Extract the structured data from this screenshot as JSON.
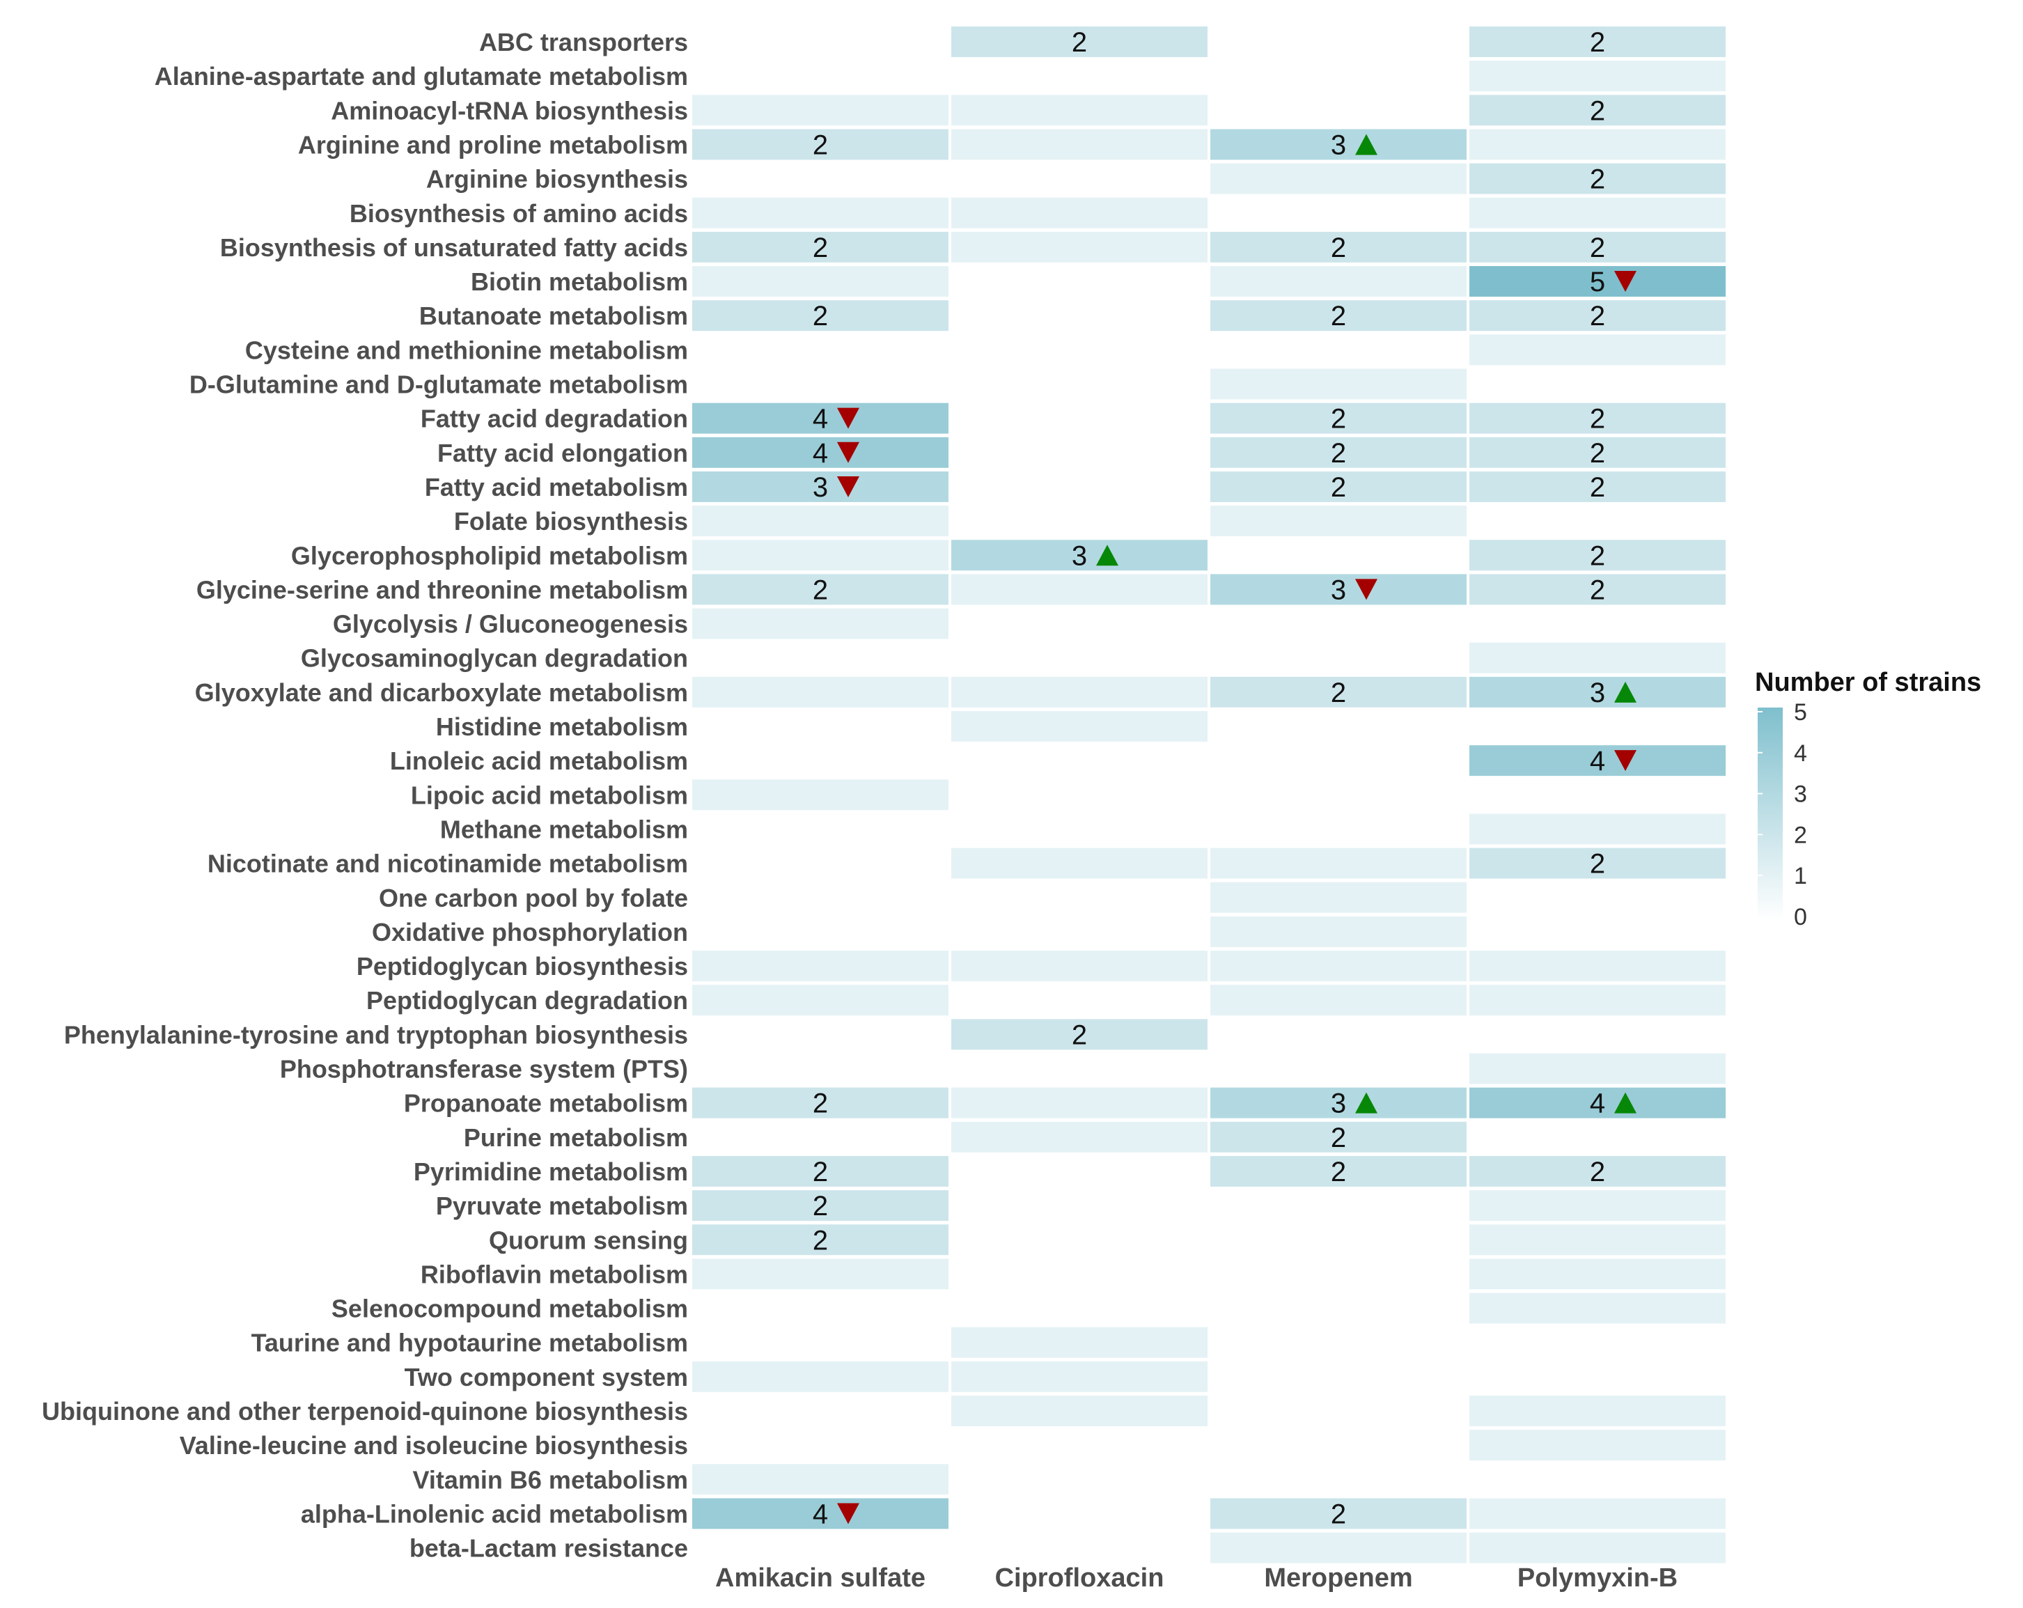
{
  "chart_data": {
    "type": "heatmap",
    "title": "",
    "xlabel": "",
    "ylabel": "",
    "columns": [
      "Amikacin sulfate",
      "Ciprofloxacin",
      "Meropenem",
      "Polymyxin-B"
    ],
    "rows": [
      "ABC transporters",
      "Alanine-aspartate and glutamate metabolism",
      "Aminoacyl-tRNA biosynthesis",
      "Arginine and proline metabolism",
      "Arginine biosynthesis",
      "Biosynthesis of amino acids",
      "Biosynthesis of unsaturated fatty acids",
      "Biotin metabolism",
      "Butanoate metabolism",
      "Cysteine and methionine metabolism",
      "D-Glutamine and D-glutamate metabolism",
      "Fatty acid degradation",
      "Fatty acid elongation",
      "Fatty acid metabolism",
      "Folate biosynthesis",
      "Glycerophospholipid metabolism",
      "Glycine-serine and threonine metabolism",
      "Glycolysis / Gluconeogenesis",
      "Glycosaminoglycan degradation",
      "Glyoxylate and dicarboxylate metabolism",
      "Histidine metabolism",
      "Linoleic acid metabolism",
      "Lipoic acid metabolism",
      "Methane metabolism",
      "Nicotinate and nicotinamide metabolism",
      "One carbon pool by folate",
      "Oxidative phosphorylation",
      "Peptidoglycan biosynthesis",
      "Peptidoglycan degradation",
      "Phenylalanine-tyrosine and tryptophan biosynthesis",
      "Phosphotransferase system (PTS)",
      "Propanoate metabolism",
      "Purine metabolism",
      "Pyrimidine metabolism",
      "Pyruvate metabolism",
      "Quorum sensing",
      "Riboflavin metabolism",
      "Selenocompound metabolism",
      "Taurine and hypotaurine metabolism",
      "Two component system",
      "Ubiquinone and other terpenoid-quinone biosynthesis",
      "Valine-leucine and isoleucine biosynthesis",
      "Vitamin B6 metabolism",
      "alpha-Linolenic acid metabolism",
      "beta-Lactam resistance"
    ],
    "values": [
      [
        0,
        2,
        0,
        2
      ],
      [
        0,
        0,
        0,
        1
      ],
      [
        1,
        1,
        0,
        2
      ],
      [
        2,
        1,
        3,
        1
      ],
      [
        0,
        0,
        1,
        2
      ],
      [
        1,
        1,
        0,
        1
      ],
      [
        2,
        1,
        2,
        2
      ],
      [
        1,
        0,
        1,
        5
      ],
      [
        2,
        0,
        2,
        2
      ],
      [
        0,
        0,
        0,
        1
      ],
      [
        0,
        0,
        1,
        0
      ],
      [
        4,
        0,
        2,
        2
      ],
      [
        4,
        0,
        2,
        2
      ],
      [
        3,
        0,
        2,
        2
      ],
      [
        1,
        0,
        1,
        0
      ],
      [
        1,
        3,
        0,
        2
      ],
      [
        2,
        1,
        3,
        2
      ],
      [
        1,
        0,
        0,
        0
      ],
      [
        0,
        0,
        0,
        1
      ],
      [
        1,
        1,
        2,
        3
      ],
      [
        0,
        1,
        0,
        0
      ],
      [
        0,
        0,
        0,
        4
      ],
      [
        1,
        0,
        0,
        0
      ],
      [
        0,
        0,
        0,
        1
      ],
      [
        0,
        1,
        1,
        2
      ],
      [
        0,
        0,
        1,
        0
      ],
      [
        0,
        0,
        1,
        0
      ],
      [
        1,
        1,
        1,
        1
      ],
      [
        1,
        0,
        1,
        1
      ],
      [
        0,
        2,
        0,
        0
      ],
      [
        0,
        0,
        0,
        1
      ],
      [
        2,
        1,
        3,
        4
      ],
      [
        0,
        1,
        2,
        0
      ],
      [
        2,
        0,
        2,
        2
      ],
      [
        2,
        0,
        0,
        1
      ],
      [
        2,
        0,
        0,
        1
      ],
      [
        1,
        0,
        0,
        1
      ],
      [
        0,
        0,
        0,
        1
      ],
      [
        0,
        1,
        0,
        0
      ],
      [
        1,
        1,
        0,
        0
      ],
      [
        0,
        1,
        0,
        1
      ],
      [
        0,
        0,
        0,
        1
      ],
      [
        1,
        0,
        0,
        0
      ],
      [
        4,
        0,
        2,
        1
      ],
      [
        0,
        0,
        1,
        1
      ]
    ],
    "label_threshold": 2,
    "markers": [
      {
        "row": "Arginine and proline metabolism",
        "column": "Meropenem",
        "direction": "up"
      },
      {
        "row": "Biotin metabolism",
        "column": "Polymyxin-B",
        "direction": "down"
      },
      {
        "row": "Fatty acid degradation",
        "column": "Amikacin sulfate",
        "direction": "down"
      },
      {
        "row": "Fatty acid elongation",
        "column": "Amikacin sulfate",
        "direction": "down"
      },
      {
        "row": "Fatty acid metabolism",
        "column": "Amikacin sulfate",
        "direction": "down"
      },
      {
        "row": "Glycerophospholipid metabolism",
        "column": "Ciprofloxacin",
        "direction": "up"
      },
      {
        "row": "Glycine-serine and threonine metabolism",
        "column": "Meropenem",
        "direction": "down"
      },
      {
        "row": "Glyoxylate and dicarboxylate metabolism",
        "column": "Polymyxin-B",
        "direction": "up"
      },
      {
        "row": "Linoleic acid metabolism",
        "column": "Polymyxin-B",
        "direction": "down"
      },
      {
        "row": "Propanoate metabolism",
        "column": "Meropenem",
        "direction": "up"
      },
      {
        "row": "Propanoate metabolism",
        "column": "Polymyxin-B",
        "direction": "up"
      },
      {
        "row": "alpha-Linolenic acid metabolism",
        "column": "Amikacin sulfate",
        "direction": "down"
      }
    ],
    "color_scale": {
      "min": 0,
      "max": 5,
      "low": "#ffffff",
      "high": "#7fbfcd"
    },
    "up_color": "#078707",
    "down_color": "#a50000",
    "legend": {
      "title": "Number of strains",
      "ticks": [
        "5",
        "4",
        "3",
        "2",
        "1",
        "0"
      ],
      "position": "right"
    }
  }
}
